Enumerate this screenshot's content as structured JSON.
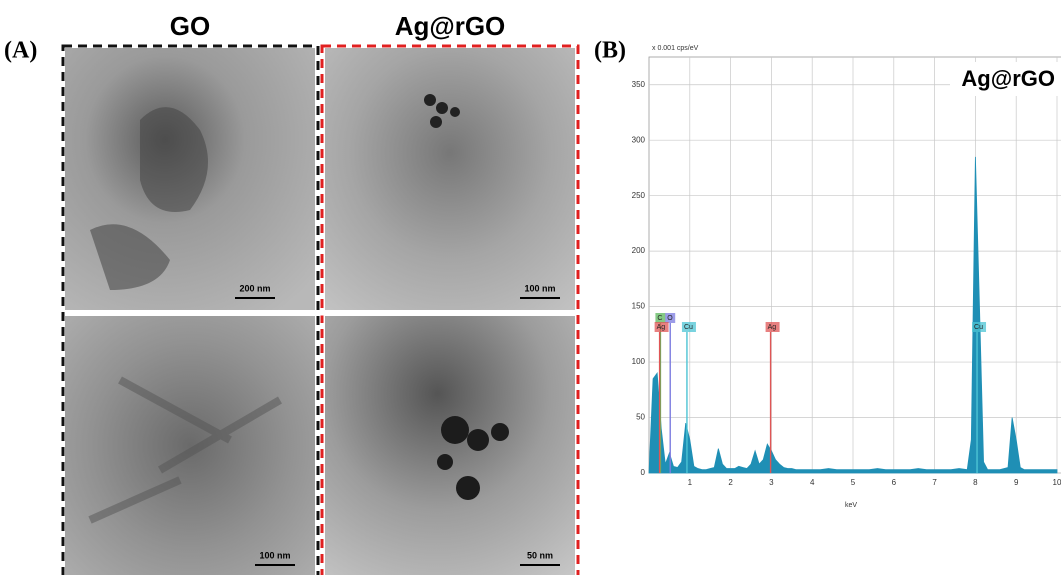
{
  "panel_a": {
    "label": "(A)",
    "columns": [
      "GO",
      "Ag@rGO"
    ],
    "scale_bars": [
      "200 nm",
      "100 nm",
      "100 nm",
      "50 nm"
    ]
  },
  "panel_b": {
    "label": "(B)"
  },
  "chart_data": {
    "type": "area",
    "title": "Ag@rGO",
    "y_unit": "x 0.001 cps/eV",
    "x_label": "keV",
    "x": [
      0.0,
      0.1,
      0.2,
      0.3,
      0.4,
      0.5,
      0.6,
      0.7,
      0.8,
      0.9,
      1.0,
      1.1,
      1.2,
      1.3,
      1.4,
      1.5,
      1.6,
      1.7,
      1.8,
      1.9,
      2.0,
      2.1,
      2.2,
      2.3,
      2.4,
      2.5,
      2.6,
      2.7,
      2.8,
      2.9,
      3.0,
      3.1,
      3.2,
      3.3,
      3.4,
      3.5,
      3.6,
      3.7,
      3.8,
      3.9,
      4.0,
      4.2,
      4.4,
      4.6,
      4.8,
      5.0,
      5.2,
      5.4,
      5.6,
      5.8,
      6.0,
      6.2,
      6.4,
      6.6,
      6.8,
      7.0,
      7.2,
      7.4,
      7.6,
      7.8,
      7.9,
      8.0,
      8.1,
      8.2,
      8.3,
      8.4,
      8.6,
      8.8,
      8.9,
      9.0,
      9.1,
      9.2,
      9.4,
      9.6,
      9.8,
      10.0
    ],
    "series": [
      {
        "color": "#1f8fb5",
        "values": [
          0,
          85,
          90,
          40,
          8,
          18,
          6,
          5,
          10,
          45,
          30,
          6,
          4,
          3,
          3,
          4,
          5,
          22,
          8,
          4,
          4,
          4,
          6,
          5,
          4,
          8,
          20,
          8,
          12,
          26,
          20,
          12,
          8,
          5,
          4,
          4,
          3,
          3,
          3,
          3,
          3,
          3,
          4,
          3,
          3,
          3,
          3,
          3,
          4,
          3,
          3,
          3,
          3,
          4,
          3,
          3,
          3,
          3,
          4,
          3,
          30,
          285,
          150,
          10,
          3,
          3,
          3,
          5,
          50,
          30,
          5,
          3,
          3,
          3,
          3,
          3
        ]
      }
    ],
    "xlim": [
      0,
      10
    ],
    "ylim": [
      0,
      375
    ],
    "xticks": [
      1,
      2,
      3,
      4,
      5,
      6,
      7,
      8,
      9,
      10
    ],
    "yticks": [
      0,
      50,
      100,
      150,
      200,
      250,
      300,
      350
    ],
    "grid": true,
    "element_markers": [
      {
        "label": "C",
        "x": 0.28,
        "color": "#5cb85c"
      },
      {
        "label": "O",
        "x": 0.52,
        "color": "#7b7be0"
      },
      {
        "label": "Ag",
        "x": 0.26,
        "color": "#e05555"
      },
      {
        "label": "Cu",
        "x": 0.93,
        "color": "#4cc4d4"
      },
      {
        "label": "Ag",
        "x": 2.98,
        "color": "#e05555"
      },
      {
        "label": "Cu",
        "x": 8.04,
        "color": "#4cc4d4"
      }
    ]
  }
}
